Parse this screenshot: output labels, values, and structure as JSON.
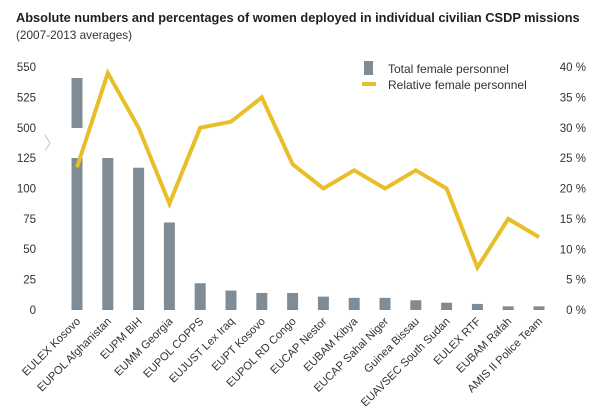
{
  "chart_data": {
    "type": "bar",
    "title": "Absolute numbers and percentages of women deployed in individual civilian CSDP missions",
    "subtitle": "(2007-2013 averages)",
    "categories": [
      "EULEX Kosovo",
      "EUPOL Afghanistan",
      "EUPM BiH",
      "EUMM Georgia",
      "EUPOL COPPS",
      "EUJUST Lex Iraq",
      "EUPT Kosovo",
      "EUPOL RD Congo",
      "EUCAP Nestor",
      "EUBAM Kibya",
      "EUCAP Sahal Niger",
      "Guinea Bissau",
      "EUAVSEC South Sudan",
      "EULEX RTF",
      "EUBAM Rafah",
      "AMIS II Police Team"
    ],
    "series": [
      {
        "name": "Total female personnel",
        "type": "bar",
        "axis": "left",
        "color": "#7f8c96",
        "values": [
          541,
          125,
          117,
          72,
          22,
          16,
          14,
          14,
          11,
          10,
          10,
          8,
          6,
          5,
          3,
          3
        ]
      },
      {
        "name": "Relative female personnel",
        "type": "line",
        "axis": "right",
        "color": "#e8bf2a",
        "values": [
          23.5,
          39,
          30,
          17.5,
          30,
          31,
          35,
          24,
          20,
          23,
          20,
          23,
          20,
          7,
          15,
          12
        ]
      }
    ],
    "left_axis": {
      "ticks": [
        "0",
        "25",
        "50",
        "75",
        "100",
        "125",
        "500",
        "525",
        "550"
      ],
      "tick_values": [
        0,
        25,
        50,
        75,
        100,
        125,
        500,
        525,
        550
      ],
      "broken": true,
      "break_between": [
        125,
        500
      ]
    },
    "right_axis": {
      "ticks": [
        "0 %",
        "5 %",
        "10 %",
        "15 %",
        "20 %",
        "25 %",
        "30 %",
        "35 %",
        "40 %"
      ],
      "tick_values": [
        0,
        5,
        10,
        15,
        20,
        25,
        30,
        35,
        40
      ],
      "ylim": [
        0,
        40
      ]
    },
    "legend_position": "top-right",
    "grid": false
  }
}
